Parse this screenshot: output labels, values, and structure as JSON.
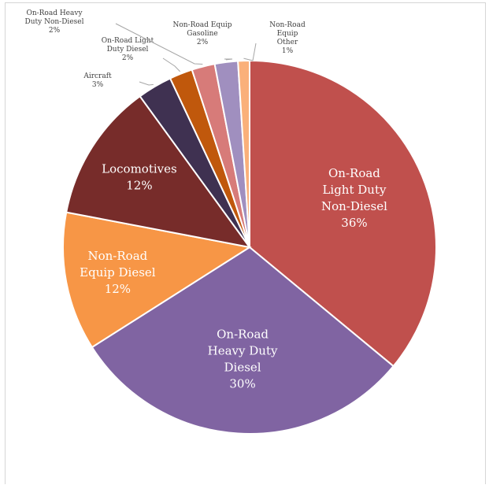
{
  "chart_data": {
    "type": "pie",
    "title": "",
    "slices": [
      {
        "label": [
          "On-Road",
          "Light Duty",
          "Non-Diesel"
        ],
        "pct_label": "36%",
        "value": 36,
        "color": "#c0504d"
      },
      {
        "label": [
          "On-Road",
          "Heavy Duty",
          "Diesel"
        ],
        "pct_label": "30%",
        "value": 30,
        "color": "#8064a2"
      },
      {
        "label": [
          "Non-Road",
          "Equip Diesel"
        ],
        "pct_label": "12%",
        "value": 12,
        "color": "#f79646"
      },
      {
        "label": [
          "Locomotives"
        ],
        "pct_label": "12%",
        "value": 12,
        "color": "#772c2a"
      },
      {
        "label": [
          "Aircraft"
        ],
        "pct_label": "3%",
        "value": 3,
        "color": "#3f3151"
      },
      {
        "label": [
          "On-Road Light",
          "Duty Diesel"
        ],
        "pct_label": "2%",
        "value": 2,
        "color": "#c0580c"
      },
      {
        "label": [
          "On-Road Heavy",
          "Duty Non-Diesel"
        ],
        "pct_label": "2%",
        "value": 2,
        "color": "#d77b79"
      },
      {
        "label": [
          "Non-Road Equip",
          "Gasoline"
        ],
        "pct_label": "2%",
        "value": 2,
        "color": "#a08fbf"
      },
      {
        "label": [
          "Non-Road",
          "Equip",
          "Other"
        ],
        "pct_label": "1%",
        "value": 1,
        "color": "#fab07a"
      }
    ]
  }
}
